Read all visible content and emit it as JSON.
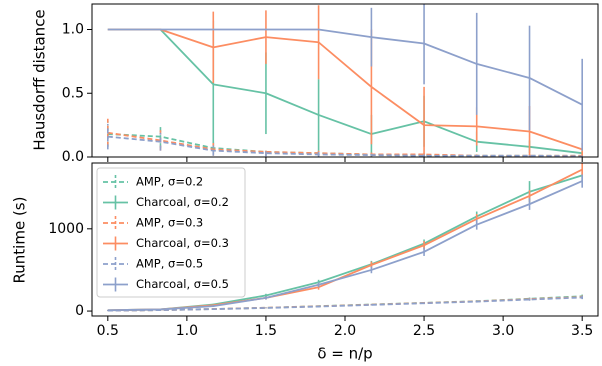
{
  "chart_data": [
    {
      "type": "line",
      "ylabel": "Hausdorff distance",
      "xlabel": "",
      "xlim": [
        0.4,
        3.6
      ],
      "ylim": [
        0.0,
        1.2
      ],
      "yticks": [
        0.0,
        0.5,
        1.0
      ],
      "ytick_labels": [
        "0.0",
        "0.5",
        "1.0"
      ],
      "grid": false,
      "x": [
        0.5,
        0.833,
        1.167,
        1.5,
        1.833,
        2.167,
        2.5,
        2.833,
        3.167,
        3.5
      ],
      "series": [
        {
          "key": "amp02",
          "color": "#66c2a5",
          "dashed": true,
          "values": [
            0.18,
            0.16,
            0.07,
            0.04,
            0.03,
            0.02,
            0.015,
            0.01,
            0.01,
            0.01
          ],
          "err": [
            0.1,
            0.09,
            0.05,
            0.03,
            0.02,
            0.015,
            0.01,
            0.01,
            0.01,
            0.01
          ]
        },
        {
          "key": "char02",
          "color": "#66c2a5",
          "dashed": false,
          "values": [
            1.0,
            1.0,
            0.57,
            0.5,
            0.33,
            0.18,
            0.28,
            0.12,
            0.08,
            0.03
          ],
          "err": [
            0.0,
            0.0,
            0.5,
            0.32,
            0.28,
            0.15,
            0.2,
            0.08,
            0.05,
            0.02
          ]
        },
        {
          "key": "amp03",
          "color": "#fc8d62",
          "dashed": true,
          "values": [
            0.19,
            0.13,
            0.06,
            0.04,
            0.03,
            0.02,
            0.02,
            0.01,
            0.01,
            0.01
          ],
          "err": [
            0.11,
            0.08,
            0.05,
            0.03,
            0.02,
            0.015,
            0.01,
            0.01,
            0.01,
            0.01
          ]
        },
        {
          "key": "char03",
          "color": "#fc8d62",
          "dashed": false,
          "values": [
            1.0,
            1.0,
            0.86,
            0.94,
            0.9,
            0.55,
            0.25,
            0.24,
            0.2,
            0.06
          ],
          "err": [
            0.0,
            0.0,
            0.28,
            0.21,
            0.29,
            0.45,
            0.3,
            0.15,
            0.2,
            0.05
          ]
        },
        {
          "key": "amp05",
          "color": "#8da0cb",
          "dashed": true,
          "values": [
            0.16,
            0.12,
            0.05,
            0.03,
            0.02,
            0.015,
            0.01,
            0.01,
            0.01,
            0.005
          ],
          "err": [
            0.1,
            0.07,
            0.04,
            0.025,
            0.02,
            0.01,
            0.01,
            0.005,
            0.005,
            0.005
          ]
        },
        {
          "key": "char05",
          "color": "#8da0cb",
          "dashed": false,
          "values": [
            1.0,
            1.0,
            1.0,
            1.0,
            1.0,
            0.94,
            0.89,
            0.73,
            0.62,
            0.41
          ],
          "err": [
            0.0,
            0.0,
            0.0,
            0.0,
            0.0,
            0.23,
            0.32,
            0.4,
            0.41,
            0.36
          ]
        }
      ]
    },
    {
      "type": "line",
      "ylabel": "Runtime (s)",
      "xlabel": "δ = n/p",
      "xlim": [
        0.4,
        3.6
      ],
      "ylim": [
        -60,
        1800
      ],
      "yticks": [
        0,
        1000
      ],
      "ytick_labels": [
        "0",
        "1000"
      ],
      "xticks": [
        0.5,
        1.0,
        1.5,
        2.0,
        2.5,
        3.0,
        3.5
      ],
      "xtick_labels": [
        "0.5",
        "1.0",
        "1.5",
        "2.0",
        "2.5",
        "3.0",
        "3.5"
      ],
      "grid": false,
      "legend_position": "upper-left",
      "x": [
        0.5,
        0.833,
        1.167,
        1.5,
        1.833,
        2.167,
        2.5,
        2.833,
        3.167,
        3.5
      ],
      "series": [
        {
          "key": "amp02",
          "name": "AMP, σ=0.2",
          "color": "#66c2a5",
          "dashed": true,
          "values": [
            5,
            12,
            25,
            40,
            60,
            80,
            100,
            120,
            150,
            180
          ],
          "err": [
            2,
            3,
            5,
            5,
            6,
            8,
            10,
            12,
            15,
            20
          ]
        },
        {
          "key": "char02",
          "name": "Charcoal, σ=0.2",
          "color": "#66c2a5",
          "dashed": false,
          "values": [
            10,
            20,
            80,
            190,
            350,
            570,
            820,
            1150,
            1450,
            1650
          ],
          "err": [
            3,
            5,
            10,
            20,
            30,
            40,
            50,
            60,
            130,
            70
          ]
        },
        {
          "key": "amp03",
          "name": "AMP, σ=0.3",
          "color": "#fc8d62",
          "dashed": true,
          "values": [
            5,
            12,
            25,
            40,
            58,
            78,
            98,
            118,
            145,
            170
          ],
          "err": [
            2,
            3,
            5,
            5,
            6,
            8,
            10,
            12,
            15,
            20
          ]
        },
        {
          "key": "char03",
          "name": "Charcoal, σ=0.3",
          "color": "#fc8d62",
          "dashed": false,
          "values": [
            10,
            20,
            70,
            160,
            290,
            560,
            800,
            1120,
            1400,
            1720
          ],
          "err": [
            3,
            5,
            10,
            20,
            30,
            40,
            50,
            60,
            70,
            80
          ]
        },
        {
          "key": "amp05",
          "name": "AMP, σ=0.5",
          "color": "#8da0cb",
          "dashed": true,
          "values": [
            5,
            12,
            24,
            38,
            55,
            75,
            95,
            115,
            140,
            165
          ],
          "err": [
            2,
            3,
            5,
            5,
            6,
            8,
            10,
            12,
            15,
            20
          ]
        },
        {
          "key": "char05",
          "name": "Charcoal, σ=0.5",
          "color": "#8da0cb",
          "dashed": false,
          "values": [
            10,
            20,
            60,
            160,
            320,
            500,
            720,
            1050,
            1300,
            1580
          ],
          "err": [
            3,
            5,
            10,
            20,
            30,
            40,
            50,
            60,
            70,
            80
          ]
        }
      ]
    }
  ]
}
